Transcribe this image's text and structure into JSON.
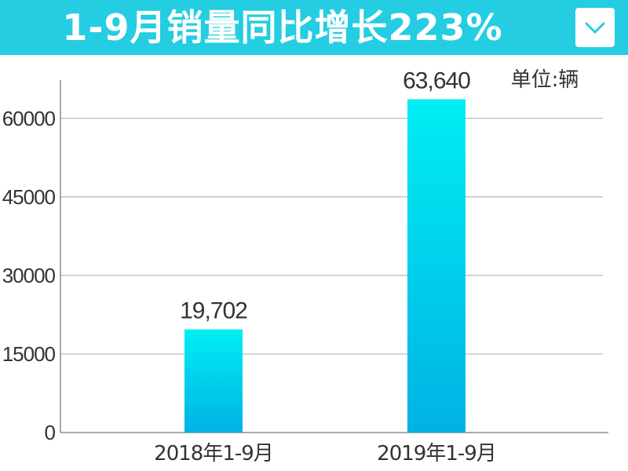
{
  "header": {
    "title": "1-9月销量同比增长223%",
    "background_color": "#24cde2",
    "dropdown_icon": "chevron-down-icon"
  },
  "chart_data": {
    "type": "bar",
    "title": "1-9月销量同比增长223%",
    "unit_label": "单位:辆",
    "categories": [
      "2018年1-9月",
      "2019年1-9月"
    ],
    "values": [
      19702,
      63640
    ],
    "data_labels": [
      "19,702",
      "63,640"
    ],
    "yticks": [
      0,
      15000,
      30000,
      45000,
      60000
    ],
    "ytick_labels": [
      "0",
      "15000",
      "30000",
      "45000",
      "60000"
    ],
    "ylim": [
      0,
      68000
    ],
    "grid": true,
    "bar_color_top": "#00eef3",
    "bar_color_bottom": "#00b2e4"
  }
}
